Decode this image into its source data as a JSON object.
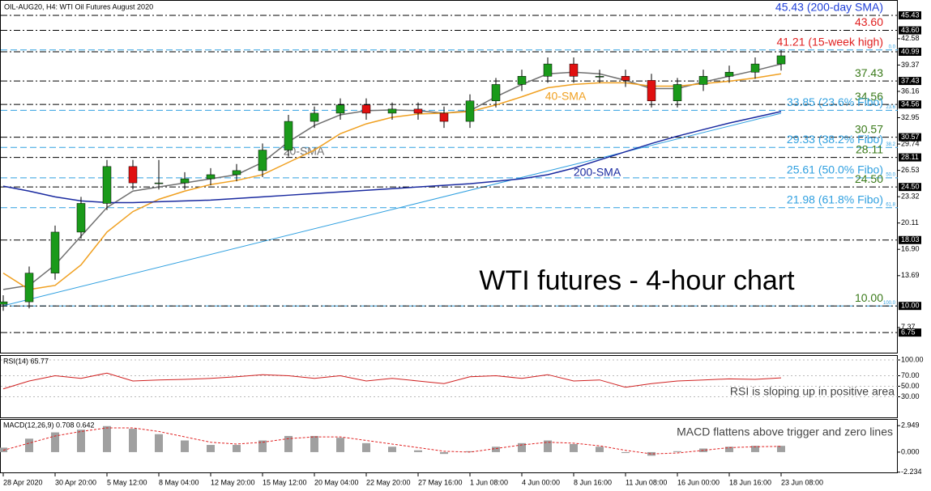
{
  "header": "OIL-AUG20, H4:  WTI Oil Futures August 2020",
  "chart_data": [
    {
      "type": "candlestick",
      "title": "WTI futures - 4-hour chart",
      "up_color": "#1a9a1a",
      "down_color": "#e01010",
      "open": [
        10.2,
        10.5,
        14,
        19,
        22.5,
        27,
        25,
        25,
        25.5,
        26,
        26.5,
        29,
        32.5,
        33.5,
        34.5,
        33.5,
        34,
        33.5,
        32.5,
        35,
        37,
        38,
        39.5,
        38,
        38,
        37.5,
        35,
        37,
        38,
        38.5,
        39.5
      ],
      "high": [
        11.3,
        14.8,
        19.8,
        23.3,
        27.8,
        27.8,
        27.8,
        26.3,
        26.8,
        27.3,
        29.8,
        33.3,
        34.3,
        35.3,
        35.3,
        34.8,
        34.8,
        34.3,
        35.8,
        37.8,
        38.8,
        40.3,
        40.3,
        38.8,
        38.8,
        38.3,
        37.8,
        38.8,
        39.3,
        40.3,
        41.2
      ],
      "low": [
        9.4,
        9.7,
        13.2,
        18.2,
        21.7,
        24.2,
        24.2,
        24.2,
        24.7,
        25.2,
        25.7,
        28.2,
        31.7,
        32.7,
        32.7,
        32.7,
        32.7,
        31.7,
        31.7,
        34.2,
        36.2,
        37.2,
        37.2,
        37.2,
        36.7,
        34.2,
        34.2,
        36.2,
        37.2,
        37.7,
        38.7
      ],
      "close": [
        10.5,
        14,
        19,
        22.5,
        27,
        25,
        25,
        25.5,
        26,
        26.5,
        29,
        32.5,
        33.5,
        34.5,
        33.5,
        34,
        33.5,
        32.5,
        35,
        37,
        38,
        39.5,
        38,
        38,
        37.5,
        35,
        37,
        38,
        38.5,
        39.5,
        40.5
      ],
      "lines": [
        {
          "name": "20-SMA",
          "color": "#707070",
          "values": [
            12,
            12.5,
            15,
            18.5,
            22,
            24,
            24.5,
            25,
            25.5,
            26,
            27.5,
            30,
            32,
            33.3,
            33.8,
            33.9,
            33.8,
            33.5,
            33.8,
            35.5,
            37,
            38.3,
            38.5,
            38.3,
            37.5,
            36.5,
            36.5,
            37.3,
            38,
            38.7,
            39.5
          ]
        },
        {
          "name": "40-SMA",
          "color": "#f0a020",
          "values": [
            14,
            12,
            12.5,
            15,
            19,
            21.5,
            23,
            24,
            24.8,
            25.3,
            26,
            27.5,
            29,
            31,
            32.2,
            33,
            33.4,
            33.5,
            33.7,
            34.5,
            35.5,
            36.6,
            37,
            37.2,
            37.2,
            36.8,
            36.8,
            37.1,
            37.4,
            37.8,
            38.3
          ]
        },
        {
          "name": "200-SMA",
          "color": "#1a2aa0",
          "values": [
            24.6,
            24.0,
            23.3,
            22.8,
            22.6,
            22.6,
            22.7,
            22.8,
            22.9,
            23.1,
            23.3,
            23.5,
            23.7,
            23.9,
            24.1,
            24.3,
            24.5,
            24.7,
            24.9,
            25.2,
            25.5,
            26.0,
            26.8,
            27.8,
            28.8,
            29.8,
            30.7,
            31.5,
            32.3,
            33.0,
            33.7
          ]
        }
      ],
      "ylim": [
        4.2,
        47.3
      ],
      "yticks": [
        42.58,
        39.37,
        36.16,
        32.95,
        29.74,
        26.53,
        23.32,
        20.11,
        {
          "value": 16.9,
          "label": "16.90"
        },
        13.69,
        7.37
      ],
      "levels": [
        {
          "value": 45.43,
          "label": "45.43"
        },
        {
          "value": 43.6,
          "label": "43.60"
        },
        {
          "value": 40.99,
          "label": "40.99"
        },
        {
          "value": 37.43,
          "label": "37.43"
        },
        {
          "value": 34.56,
          "label": "34.56"
        },
        {
          "value": 30.57,
          "label": "30.57"
        },
        {
          "value": 28.11,
          "label": "28.11"
        },
        {
          "value": 24.5,
          "label": "24.50"
        },
        {
          "value": 18.03,
          "label": "18.03"
        },
        {
          "value": 10,
          "label": "10.00"
        },
        {
          "value": 6.75,
          "label": "6.75"
        }
      ],
      "fibo": [
        {
          "value": 41.21,
          "label": "0.0"
        },
        {
          "value": 33.85,
          "label": "23.6"
        },
        {
          "value": 29.33,
          "label": "38.2"
        },
        {
          "value": 25.61,
          "label": "50.0"
        },
        {
          "value": 21.98,
          "label": "61.8"
        },
        {
          "value": 10,
          "label": "100.0"
        }
      ],
      "annotations": [
        {
          "value": 45.43,
          "text": "45.43 (200-day SMA)",
          "color": "#2040d8"
        },
        {
          "value": 43.6,
          "text": "43.60",
          "color": "#e02020"
        },
        {
          "value": 41.21,
          "text": "41.21 (15-week high)",
          "color": "#e02020"
        },
        {
          "value": 37.43,
          "text": "37.43",
          "color": "#3a7a1a"
        },
        {
          "value": 34.56,
          "text": "34.56",
          "color": "#3a7a1a"
        },
        {
          "value": 33.85,
          "text": "33.85 (23.6% Fibo)",
          "color": "#30a0e0"
        },
        {
          "value": 30.57,
          "text": "30.57",
          "color": "#3a7a1a"
        },
        {
          "value": 29.33,
          "text": "29.33 (38.2% Fibo)",
          "color": "#30a0e0"
        },
        {
          "value": 28.11,
          "text": "28.11",
          "color": "#3a7a1a"
        },
        {
          "value": 25.61,
          "text": "25.61 (50.0% Fibo)",
          "color": "#30a0e0"
        },
        {
          "value": 24.5,
          "text": "24.50",
          "color": "#3a7a1a"
        },
        {
          "value": 21.98,
          "text": "21.98 (61.8% Fibo)",
          "color": "#30a0e0"
        },
        {
          "value": 10,
          "text": "10.00",
          "color": "#3a7a1a"
        }
      ]
    },
    {
      "type": "line",
      "title": "RSI(14) 65.77",
      "color": "#d02020",
      "values": [
        45,
        60,
        70,
        65,
        75,
        60,
        62,
        63,
        65,
        68,
        72,
        70,
        65,
        70,
        60,
        65,
        60,
        55,
        68,
        70,
        65,
        72,
        60,
        62,
        48,
        55,
        60,
        62,
        64,
        63,
        66
      ],
      "ylim": [
        0,
        100
      ],
      "yticks": [
        {
          "value": 100,
          "label": "100.00"
        },
        {
          "value": 70,
          "label": "70.00"
        },
        {
          "value": 50,
          "label": "50.00"
        },
        {
          "value": 30,
          "label": "30.00"
        }
      ],
      "annotation": "RSI is sloping up in positive area"
    },
    {
      "type": "macd",
      "title": "MACD(12,26,9) 0.708 0.642",
      "categories": [
        "28 Apr 2020",
        null,
        "30 Apr 20:00",
        null,
        "5 May 12:00",
        null,
        "8 May 04:00",
        null,
        "12 May 20:00",
        null,
        "15 May 12:00",
        null,
        "20 May 04:00",
        null,
        "22 May 20:00",
        null,
        "27 May 16:00",
        null,
        "1 Jun 08:00",
        null,
        "4 Jun 00:00",
        null,
        "8 Jun 16:00",
        null,
        "11 Jun 08:00",
        null,
        "16 Jun 00:00",
        null,
        "18 Jun 16:00",
        null,
        "23 Jun 08:00"
      ],
      "histogram": [
        0.5,
        1.5,
        2.2,
        2.5,
        2.9,
        2.6,
        2.0,
        1.3,
        0.8,
        0.8,
        1.3,
        1.8,
        1.8,
        1.6,
        1.0,
        0.6,
        0.2,
        -0.2,
        0.1,
        0.6,
        1.0,
        1.3,
        0.9,
        0.6,
        -0.1,
        -0.4,
        0.1,
        0.4,
        0.6,
        0.7,
        0.7
      ],
      "signal": [
        0.2,
        1,
        1.8,
        2.3,
        2.7,
        2.7,
        2.3,
        1.7,
        1.1,
        0.9,
        1.1,
        1.5,
        1.7,
        1.7,
        1.3,
        0.9,
        0.5,
        0.1,
        0.0,
        0.4,
        0.8,
        1.1,
        1.0,
        0.7,
        0.2,
        -0.2,
        -0.1,
        0.2,
        0.5,
        0.6,
        0.64
      ],
      "hist_color": "#a0a0a0",
      "signal_color": "#e02020",
      "ylim": [
        -2.35,
        3.6
      ],
      "yticks": [
        2.949,
        {
          "value": 0,
          "label": "0.000"
        },
        -2.234
      ],
      "annotation": "MACD flattens above trigger and zero lines"
    }
  ]
}
